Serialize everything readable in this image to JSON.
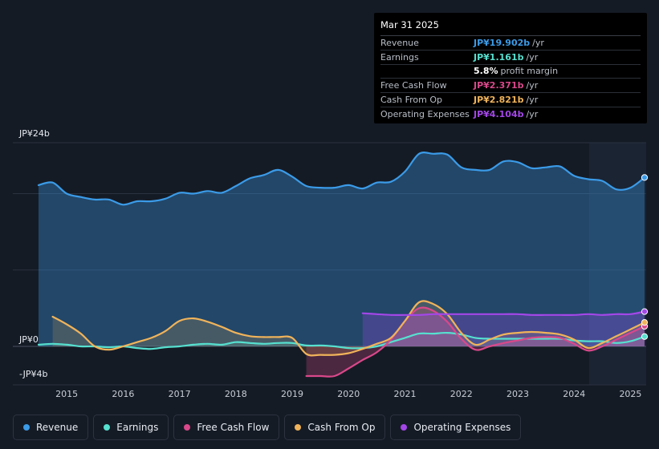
{
  "tooltip": {
    "date": "Mar 31 2025",
    "rows": [
      {
        "label": "Revenue",
        "value": "JP¥19.902b",
        "unit": "/yr",
        "color": "#3b9be8"
      },
      {
        "label": "Earnings",
        "value": "JP¥1.161b",
        "unit": "/yr",
        "color": "#56e0cf"
      },
      {
        "label": "",
        "value": "5.8%",
        "unit": "profit margin",
        "color": "#ffffff"
      },
      {
        "label": "Free Cash Flow",
        "value": "JP¥2.371b",
        "unit": "/yr",
        "color": "#d9488a"
      },
      {
        "label": "Cash From Op",
        "value": "JP¥2.821b",
        "unit": "/yr",
        "color": "#f0b35a"
      },
      {
        "label": "Operating Expenses",
        "value": "JP¥4.104b",
        "unit": "/yr",
        "color": "#a347e8"
      }
    ]
  },
  "legend": [
    {
      "label": "Revenue",
      "color": "#3b9be8"
    },
    {
      "label": "Earnings",
      "color": "#56e0cf"
    },
    {
      "label": "Free Cash Flow",
      "color": "#d9488a"
    },
    {
      "label": "Cash From Op",
      "color": "#f0b35a"
    },
    {
      "label": "Operating Expenses",
      "color": "#a347e8"
    }
  ],
  "chart_data": {
    "type": "area",
    "title": "",
    "unit": "JP¥ billions",
    "y_axis_labels": [
      "JP¥24b",
      "JP¥0",
      "-JP¥4b"
    ],
    "ylim": [
      -4,
      24
    ],
    "xlim": [
      2014.5,
      2025.25
    ],
    "forecast_start": 2024.25,
    "x_ticks": [
      2015,
      2016,
      2017,
      2018,
      2019,
      2020,
      2021,
      2022,
      2023,
      2024,
      2025
    ],
    "series": [
      {
        "name": "Revenue",
        "color": "#3b9be8",
        "points": [
          [
            2014.5,
            19
          ],
          [
            2014.75,
            19.3
          ],
          [
            2015,
            18
          ],
          [
            2015.25,
            17.6
          ],
          [
            2015.5,
            17.3
          ],
          [
            2015.75,
            17.3
          ],
          [
            2016,
            16.7
          ],
          [
            2016.25,
            17.1
          ],
          [
            2016.5,
            17.1
          ],
          [
            2016.75,
            17.4
          ],
          [
            2017,
            18.1
          ],
          [
            2017.25,
            18
          ],
          [
            2017.5,
            18.3
          ],
          [
            2017.75,
            18.1
          ],
          [
            2018,
            18.9
          ],
          [
            2018.25,
            19.8
          ],
          [
            2018.5,
            20.2
          ],
          [
            2018.75,
            20.8
          ],
          [
            2019,
            20
          ],
          [
            2019.25,
            18.9
          ],
          [
            2019.5,
            18.7
          ],
          [
            2019.75,
            18.7
          ],
          [
            2020,
            19
          ],
          [
            2020.25,
            18.6
          ],
          [
            2020.5,
            19.3
          ],
          [
            2020.75,
            19.4
          ],
          [
            2021,
            20.6
          ],
          [
            2021.25,
            22.7
          ],
          [
            2021.5,
            22.7
          ],
          [
            2021.75,
            22.6
          ],
          [
            2022,
            21.1
          ],
          [
            2022.25,
            20.8
          ],
          [
            2022.5,
            20.8
          ],
          [
            2022.75,
            21.8
          ],
          [
            2023,
            21.7
          ],
          [
            2023.25,
            21
          ],
          [
            2023.5,
            21.1
          ],
          [
            2023.75,
            21.2
          ],
          [
            2024,
            20.1
          ],
          [
            2024.25,
            19.7
          ],
          [
            2024.5,
            19.5
          ],
          [
            2024.75,
            18.5
          ],
          [
            2025,
            18.7
          ],
          [
            2025.25,
            19.9
          ]
        ]
      },
      {
        "name": "Earnings",
        "color": "#56e0cf",
        "points": [
          [
            2014.5,
            0.2
          ],
          [
            2014.75,
            0.3
          ],
          [
            2015,
            0.2
          ],
          [
            2015.25,
            0
          ],
          [
            2015.5,
            0
          ],
          [
            2015.75,
            -0.1
          ],
          [
            2016,
            0
          ],
          [
            2016.25,
            -0.2
          ],
          [
            2016.5,
            -0.3
          ],
          [
            2016.75,
            -0.1
          ],
          [
            2017,
            0
          ],
          [
            2017.25,
            0.2
          ],
          [
            2017.5,
            0.3
          ],
          [
            2017.75,
            0.2
          ],
          [
            2018,
            0.5
          ],
          [
            2018.25,
            0.4
          ],
          [
            2018.5,
            0.3
          ],
          [
            2018.75,
            0.4
          ],
          [
            2019,
            0.4
          ],
          [
            2019.25,
            0.1
          ],
          [
            2019.5,
            0.1
          ],
          [
            2019.75,
            0
          ],
          [
            2020,
            -0.2
          ],
          [
            2020.25,
            -0.2
          ],
          [
            2020.5,
            0
          ],
          [
            2020.75,
            0.5
          ],
          [
            2021,
            1
          ],
          [
            2021.25,
            1.5
          ],
          [
            2021.5,
            1.5
          ],
          [
            2021.75,
            1.6
          ],
          [
            2022,
            1.4
          ],
          [
            2022.25,
            1
          ],
          [
            2022.5,
            0.9
          ],
          [
            2022.75,
            0.9
          ],
          [
            2023,
            0.9
          ],
          [
            2023.25,
            0.9
          ],
          [
            2023.5,
            0.9
          ],
          [
            2023.75,
            0.9
          ],
          [
            2024,
            0.7
          ],
          [
            2024.25,
            0.6
          ],
          [
            2024.5,
            0.6
          ],
          [
            2024.75,
            0.4
          ],
          [
            2025,
            0.6
          ],
          [
            2025.25,
            1.16
          ]
        ]
      },
      {
        "name": "Free Cash Flow",
        "color": "#d9488a",
        "points": [
          [
            2019.25,
            -3.5
          ],
          [
            2019.5,
            -3.5
          ],
          [
            2019.75,
            -3.5
          ],
          [
            2020,
            -2.6
          ],
          [
            2020.25,
            -1.6
          ],
          [
            2020.5,
            -0.7
          ],
          [
            2020.75,
            0.8
          ],
          [
            2021,
            3
          ],
          [
            2021.25,
            4.5
          ],
          [
            2021.5,
            4.2
          ],
          [
            2021.75,
            2.9
          ],
          [
            2022,
            0.9
          ],
          [
            2022.25,
            -0.4
          ],
          [
            2022.5,
            0
          ],
          [
            2022.75,
            0.4
          ],
          [
            2023,
            0.7
          ],
          [
            2023.25,
            1
          ],
          [
            2023.5,
            1.1
          ],
          [
            2023.75,
            1
          ],
          [
            2024,
            0.3
          ],
          [
            2024.25,
            -0.5
          ],
          [
            2024.5,
            0
          ],
          [
            2024.75,
            0.8
          ],
          [
            2025,
            1.6
          ],
          [
            2025.25,
            2.37
          ]
        ]
      },
      {
        "name": "Cash From Op",
        "color": "#f0b35a",
        "points": [
          [
            2014.75,
            3.5
          ],
          [
            2015,
            2.6
          ],
          [
            2015.25,
            1.5
          ],
          [
            2015.5,
            0
          ],
          [
            2015.75,
            -0.4
          ],
          [
            2016,
            0
          ],
          [
            2016.25,
            0.5
          ],
          [
            2016.5,
            1
          ],
          [
            2016.75,
            1.8
          ],
          [
            2017,
            3
          ],
          [
            2017.25,
            3.3
          ],
          [
            2017.5,
            2.9
          ],
          [
            2017.75,
            2.3
          ],
          [
            2018,
            1.6
          ],
          [
            2018.25,
            1.2
          ],
          [
            2018.5,
            1.1
          ],
          [
            2018.75,
            1.1
          ],
          [
            2019,
            1
          ],
          [
            2019.25,
            -0.9
          ],
          [
            2019.5,
            -1
          ],
          [
            2019.75,
            -1
          ],
          [
            2020,
            -0.8
          ],
          [
            2020.25,
            -0.3
          ],
          [
            2020.5,
            0.3
          ],
          [
            2020.75,
            1
          ],
          [
            2021,
            3
          ],
          [
            2021.25,
            5.2
          ],
          [
            2021.5,
            5
          ],
          [
            2021.75,
            3.8
          ],
          [
            2022,
            1.6
          ],
          [
            2022.25,
            0.2
          ],
          [
            2022.5,
            0.8
          ],
          [
            2022.75,
            1.4
          ],
          [
            2023,
            1.6
          ],
          [
            2023.25,
            1.7
          ],
          [
            2023.5,
            1.6
          ],
          [
            2023.75,
            1.4
          ],
          [
            2024,
            0.8
          ],
          [
            2024.25,
            -0.2
          ],
          [
            2024.5,
            0.4
          ],
          [
            2024.75,
            1.2
          ],
          [
            2025,
            2
          ],
          [
            2025.25,
            2.82
          ]
        ]
      },
      {
        "name": "Operating Expenses",
        "color": "#a347e8",
        "points": [
          [
            2020.25,
            3.9
          ],
          [
            2020.5,
            3.8
          ],
          [
            2020.75,
            3.7
          ],
          [
            2021,
            3.7
          ],
          [
            2021.25,
            3.7
          ],
          [
            2021.5,
            3.8
          ],
          [
            2021.75,
            3.8
          ],
          [
            2022,
            3.8
          ],
          [
            2022.25,
            3.8
          ],
          [
            2022.5,
            3.8
          ],
          [
            2022.75,
            3.8
          ],
          [
            2023,
            3.8
          ],
          [
            2023.25,
            3.7
          ],
          [
            2023.5,
            3.7
          ],
          [
            2023.75,
            3.7
          ],
          [
            2024,
            3.7
          ],
          [
            2024.25,
            3.8
          ],
          [
            2024.5,
            3.7
          ],
          [
            2024.75,
            3.8
          ],
          [
            2025,
            3.8
          ],
          [
            2025.25,
            4.1
          ]
        ]
      }
    ]
  }
}
